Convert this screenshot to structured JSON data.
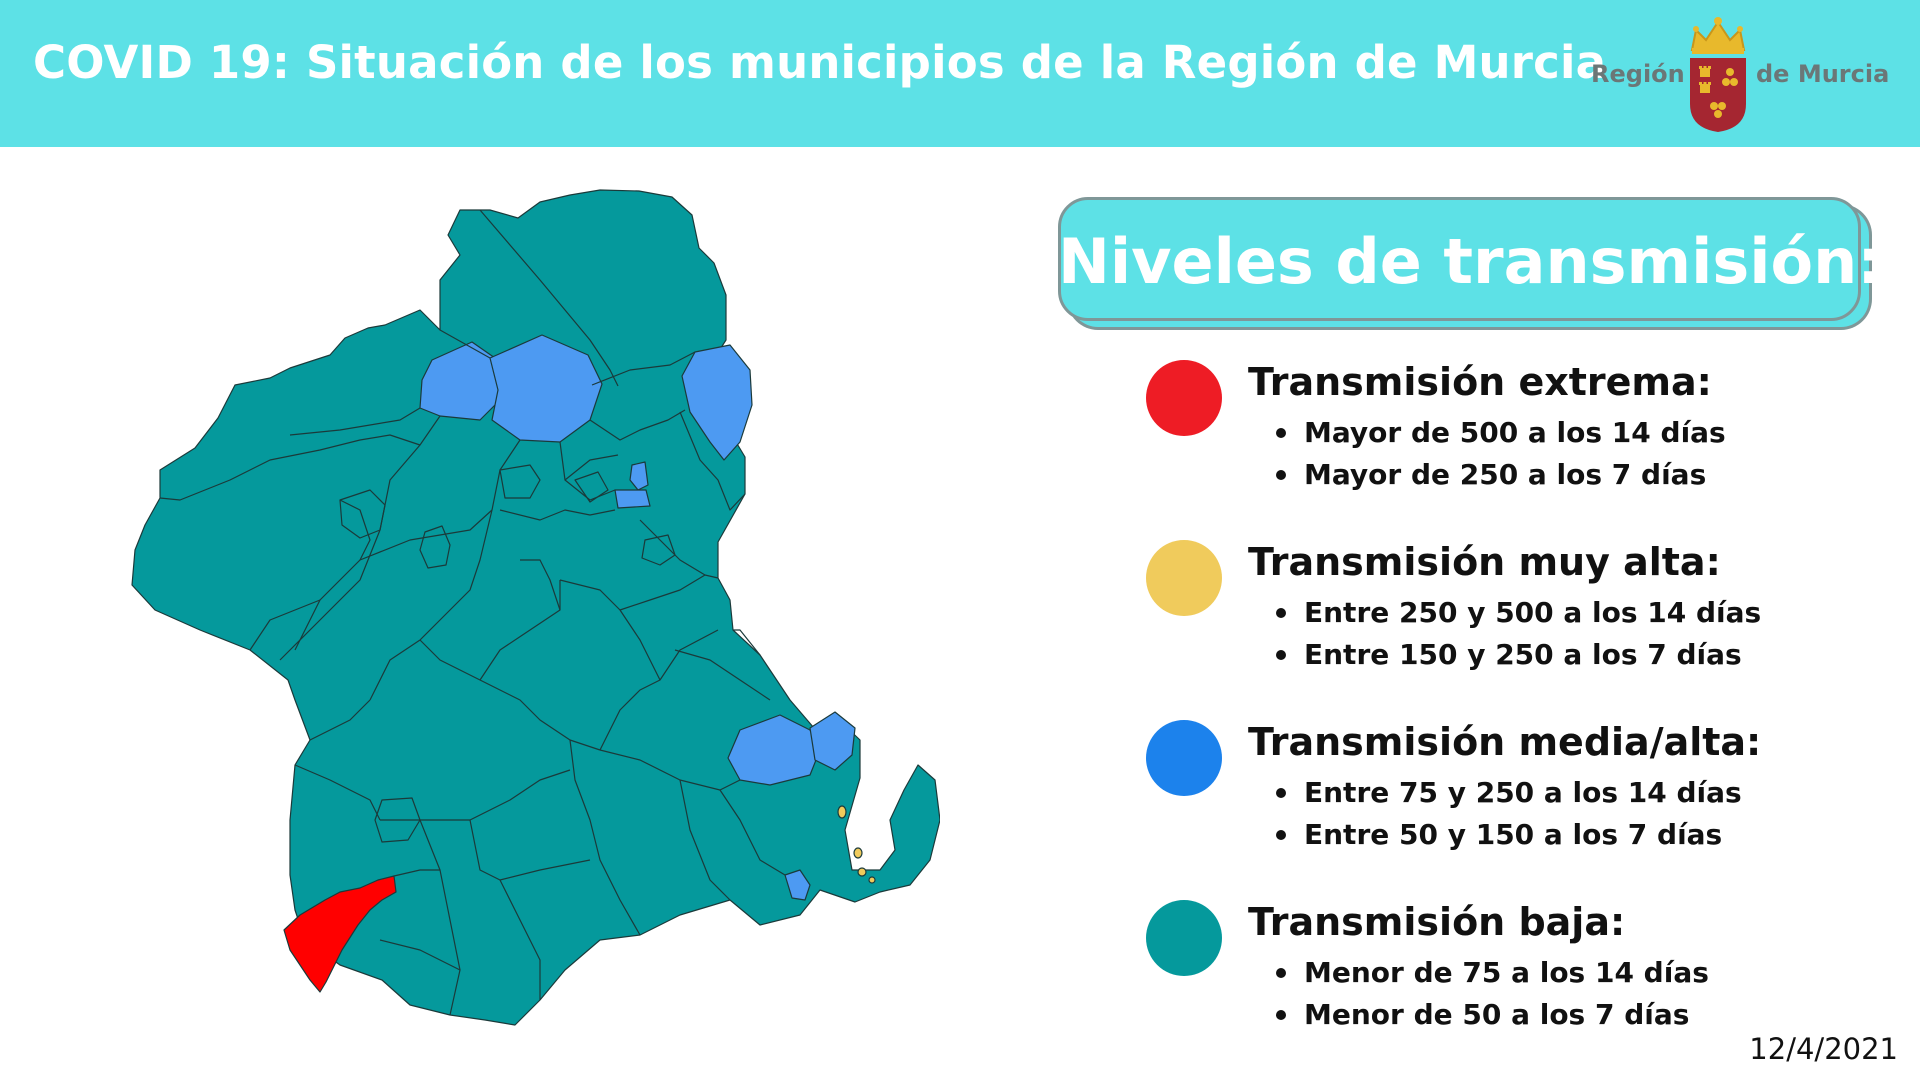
{
  "header": {
    "title": "COVID 19: Situación de los municipios de la Región de Murcia",
    "logo_left": "Región",
    "logo_right": "de Murcia"
  },
  "legend": {
    "title": "Niveles de transmisión:",
    "levels": [
      {
        "title": "Transmisión extrema:",
        "color": "#ee1c25",
        "items": [
          "Mayor de 500 a los 14 días",
          "Mayor de 250 a los 7 días"
        ]
      },
      {
        "title": "Transmisión muy alta:",
        "color": "#f0cb5c",
        "items": [
          "Entre 250 y 500 a los 14 días",
          "Entre 150 y 250 a los 7 días"
        ]
      },
      {
        "title": "Transmisión media/alta:",
        "color": "#1c82ec",
        "items": [
          "Entre 75 y 250 a los 14 días",
          "Entre 50 y 150 a los 7 días"
        ]
      },
      {
        "title": "Transmisión baja:",
        "color": "#05999c",
        "items": [
          "Menor de 75 a los 14 días",
          "Menor de 50 a los 7 días"
        ]
      }
    ]
  },
  "map_colors": {
    "low": "#05999c",
    "medium_high": "#4d9af2",
    "extreme": "#ff0000",
    "very_high": "#f0cb5c",
    "border": "#1b3a3a"
  },
  "date": "12/4/2021"
}
